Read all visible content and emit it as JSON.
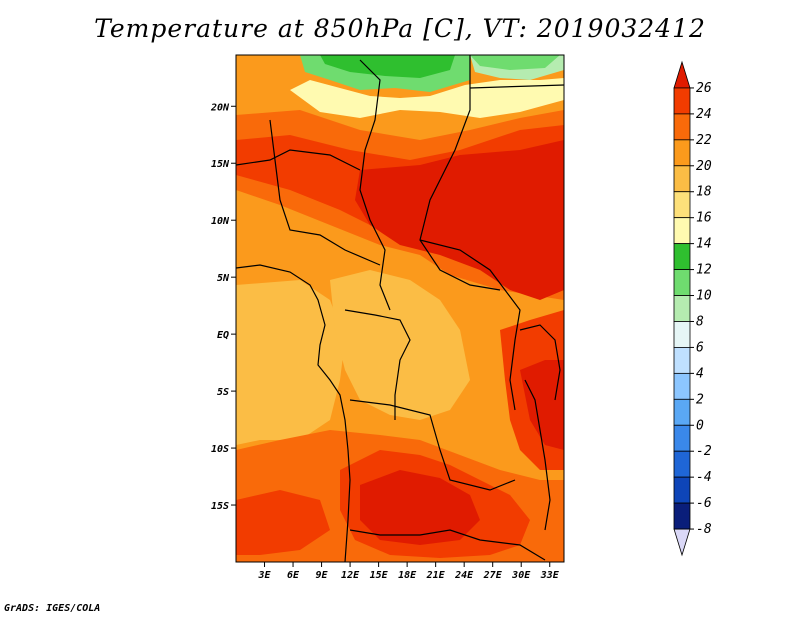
{
  "title": "Temperature at 850hPa [C], VT: 2019032412",
  "credit": "GrADS: IGES/COLA",
  "map": {
    "lat_range": [
      -20,
      24.5
    ],
    "lon_range": [
      0,
      34.5
    ],
    "lat_ticks": [
      {
        "value": 20,
        "label": "20N"
      },
      {
        "value": 15,
        "label": "15N"
      },
      {
        "value": 10,
        "label": "10N"
      },
      {
        "value": 5,
        "label": "5N"
      },
      {
        "value": 0,
        "label": "EQ"
      },
      {
        "value": -5,
        "label": "5S"
      },
      {
        "value": -10,
        "label": "10S"
      },
      {
        "value": -15,
        "label": "15S"
      }
    ],
    "lon_ticks": [
      {
        "value": 3,
        "label": "3E"
      },
      {
        "value": 6,
        "label": "6E"
      },
      {
        "value": 9,
        "label": "9E"
      },
      {
        "value": 12,
        "label": "12E"
      },
      {
        "value": 15,
        "label": "15E"
      },
      {
        "value": 18,
        "label": "18E"
      },
      {
        "value": 21,
        "label": "21E"
      },
      {
        "value": 24,
        "label": "24E"
      },
      {
        "value": 27,
        "label": "27E"
      },
      {
        "value": 30,
        "label": "30E"
      },
      {
        "value": 33,
        "label": "33E"
      }
    ]
  },
  "colorbar": {
    "levels": [
      "26",
      "24",
      "22",
      "20",
      "18",
      "16",
      "14",
      "12",
      "10",
      "8",
      "6",
      "4",
      "2",
      "0",
      "-2",
      "-4",
      "-6",
      "-8"
    ],
    "colors": [
      "#e01b00",
      "#f23c00",
      "#f96a0a",
      "#fb9a1c",
      "#fbbd45",
      "#fde07a",
      "#fffab0",
      "#2fbf2f",
      "#6fdc6f",
      "#b5ecb0",
      "#e6f6f6",
      "#bfe0ff",
      "#8cc6ff",
      "#5aa8f5",
      "#3a88ea",
      "#1f66d6",
      "#0e45b8",
      "#0a1e7a",
      "#dad8f7"
    ]
  }
}
